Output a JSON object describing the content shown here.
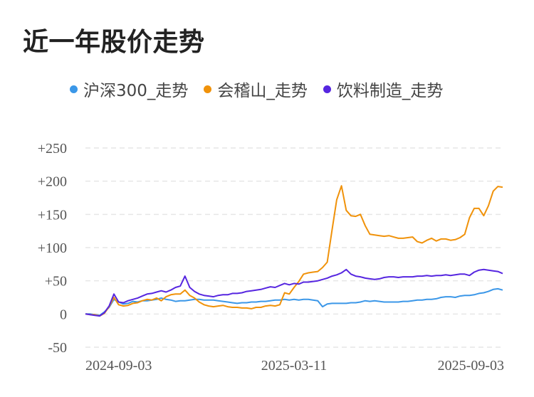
{
  "chart_data": {
    "type": "line",
    "title": "近一年股价走势",
    "x_tick_labels": [
      "2024-09-03",
      "2025-03-11",
      "2025-09-03"
    ],
    "y_tick_labels": [
      "+250",
      "+200",
      "+150",
      "+100",
      "+50",
      "0",
      "-50"
    ],
    "y_ticks": [
      250,
      200,
      150,
      100,
      50,
      0,
      -50
    ],
    "ylim": [
      -50,
      250
    ],
    "grid": true,
    "legend_position": "top",
    "series": [
      {
        "name": "沪深300_走势",
        "color": "#3b97e8",
        "values": [
          0,
          0,
          -1,
          -2,
          3,
          10,
          22,
          18,
          15,
          16,
          19,
          18,
          20,
          20,
          21,
          22,
          24,
          22,
          21,
          19,
          20,
          20,
          21,
          22,
          22,
          21,
          21,
          21,
          20,
          19,
          18,
          17,
          16,
          17,
          17,
          18,
          18,
          19,
          19,
          20,
          21,
          21,
          22,
          21,
          22,
          21,
          22,
          22,
          21,
          20,
          11,
          15,
          16,
          16,
          16,
          16,
          17,
          17,
          18,
          20,
          19,
          20,
          19,
          18,
          18,
          18,
          18,
          19,
          19,
          20,
          21,
          21,
          22,
          22,
          23,
          25,
          26,
          26,
          25,
          27,
          28,
          28,
          29,
          31,
          32,
          34,
          37,
          38,
          36
        ]
      },
      {
        "name": "会稽山_走势",
        "color": "#f0920a",
        "values": [
          0,
          -1,
          -1,
          -3,
          1,
          11,
          25,
          14,
          12,
          13,
          16,
          17,
          20,
          22,
          21,
          24,
          20,
          26,
          29,
          30,
          30,
          36,
          28,
          24,
          18,
          14,
          12,
          11,
          12,
          13,
          11,
          10,
          10,
          9,
          9,
          8,
          10,
          10,
          12,
          13,
          12,
          14,
          32,
          30,
          40,
          49,
          60,
          62,
          63,
          64,
          70,
          78,
          126,
          172,
          193,
          156,
          148,
          147,
          150,
          133,
          120,
          119,
          118,
          117,
          118,
          116,
          114,
          114,
          115,
          116,
          109,
          107,
          111,
          114,
          110,
          113,
          113,
          111,
          112,
          115,
          120,
          145,
          159,
          159,
          148,
          163,
          185,
          192,
          191
        ]
      },
      {
        "name": "饮料制造_走势",
        "color": "#5626e0",
        "values": [
          0,
          -1,
          -2,
          -3,
          2,
          12,
          30,
          18,
          17,
          20,
          22,
          24,
          27,
          30,
          31,
          33,
          35,
          33,
          36,
          40,
          42,
          57,
          40,
          34,
          30,
          28,
          27,
          26,
          28,
          29,
          29,
          31,
          31,
          32,
          34,
          35,
          36,
          37,
          39,
          41,
          40,
          43,
          46,
          44,
          46,
          45,
          48,
          48,
          49,
          50,
          52,
          54,
          57,
          59,
          62,
          67,
          60,
          57,
          56,
          54,
          53,
          52,
          53,
          55,
          56,
          56,
          55,
          56,
          56,
          56,
          57,
          57,
          58,
          57,
          58,
          58,
          59,
          58,
          59,
          60,
          60,
          58,
          63,
          66,
          67,
          66,
          65,
          64,
          61
        ]
      }
    ]
  }
}
